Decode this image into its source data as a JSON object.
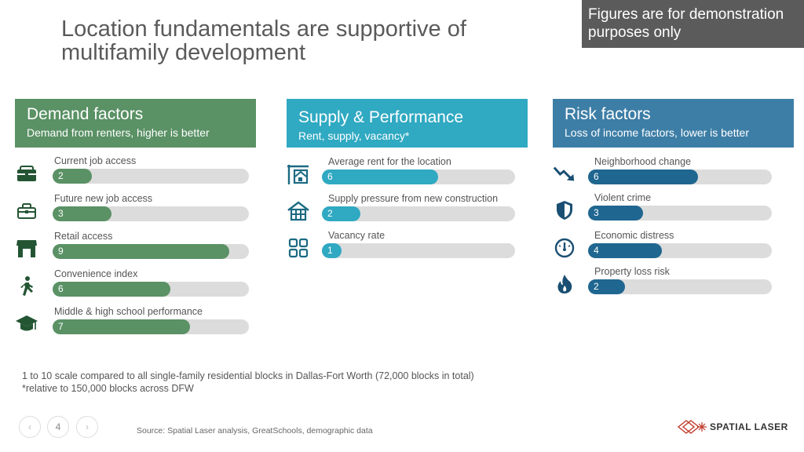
{
  "title": "Location fundamentals are supportive of multifamily development",
  "disclaimer": "Figures are for demonstration purposes only",
  "panels": {
    "demand": {
      "heading": "Demand factors",
      "subheading": "Demand from renters, higher is better",
      "color": "#5a9165",
      "items": [
        {
          "label": "Current job access",
          "value": 2,
          "icon": "briefcase-icon"
        },
        {
          "label": "Future new job access",
          "value": 3,
          "icon": "briefcase-outline-icon"
        },
        {
          "label": "Retail access",
          "value": 9,
          "icon": "store-icon"
        },
        {
          "label": "Convenience index",
          "value": 6,
          "icon": "walking-person-icon"
        },
        {
          "label": "Middle & high school performance",
          "value": 7,
          "icon": "graduation-cap-icon"
        }
      ]
    },
    "supply": {
      "heading": "Supply & Performance",
      "subheading": "Rent, supply, vacancy*",
      "color": "#30a9c2",
      "items": [
        {
          "label": "Average rent for the location",
          "value": 6,
          "icon": "house-for-rent-icon"
        },
        {
          "label": "Supply pressure from new construction",
          "value": 2,
          "icon": "house-frame-icon"
        },
        {
          "label": "Vacancy rate",
          "value": 1,
          "icon": "grid-icon"
        }
      ]
    },
    "risk": {
      "heading": "Risk factors",
      "subheading": "Loss of income factors, lower is better",
      "color": "#3d7ea6",
      "fill_color": "#1f6690",
      "items": [
        {
          "label": "Neighborhood change",
          "value": 6,
          "icon": "trend-down-icon"
        },
        {
          "label": "Violent crime",
          "value": 3,
          "icon": "shield-icon"
        },
        {
          "label": "Economic distress",
          "value": 4,
          "icon": "gauge-icon"
        },
        {
          "label": "Property loss risk",
          "value": 2,
          "icon": "flame-icon"
        }
      ]
    }
  },
  "scale_max": 10,
  "footnote_line1": "1 to 10 scale compared to all single-family residential blocks in Dallas-Fort Worth (72,000 blocks in total)",
  "footnote_line2": "*relative to 150,000 blocks across DFW",
  "source": "Source: Spatial Laser analysis, GreatSchools, demographic data",
  "page_number": "4",
  "prev_symbol": "‹",
  "next_symbol": "›",
  "logo_text": "SPATIAL LASER"
}
